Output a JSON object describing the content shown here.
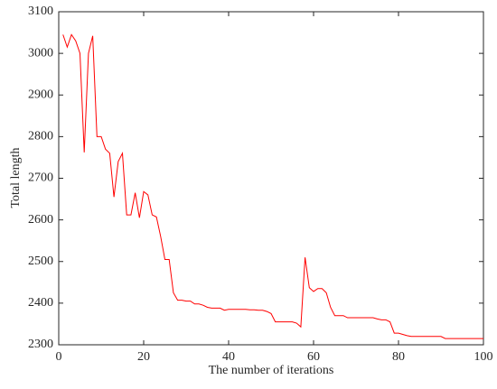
{
  "chart_data": {
    "type": "line",
    "x_label": "The number of iterations",
    "y_label": "Total length",
    "x": [
      1,
      2,
      3,
      4,
      5,
      6,
      7,
      8,
      9,
      10,
      11,
      12,
      13,
      14,
      15,
      16,
      17,
      18,
      19,
      20,
      21,
      22,
      23,
      24,
      25,
      26,
      27,
      28,
      29,
      30,
      31,
      32,
      33,
      34,
      35,
      36,
      37,
      38,
      39,
      40,
      41,
      42,
      43,
      44,
      45,
      46,
      47,
      48,
      49,
      50,
      51,
      52,
      53,
      54,
      55,
      56,
      57,
      58,
      59,
      60,
      61,
      62,
      63,
      64,
      65,
      66,
      67,
      68,
      69,
      70,
      71,
      72,
      73,
      74,
      75,
      76,
      77,
      78,
      79,
      80,
      81,
      82,
      83,
      84,
      85,
      86,
      87,
      88,
      89,
      90,
      91,
      92,
      93,
      94,
      95,
      96,
      97,
      98,
      99,
      100
    ],
    "series": [
      {
        "color": "#ff0000",
        "values": [
          3045,
          3015,
          3045,
          3030,
          3000,
          2762,
          3000,
          3042,
          2800,
          2800,
          2770,
          2760,
          2655,
          2740,
          2760,
          2612,
          2612,
          2665,
          2605,
          2668,
          2660,
          2612,
          2607,
          2560,
          2505,
          2505,
          2425,
          2407,
          2407,
          2405,
          2405,
          2398,
          2398,
          2395,
          2390,
          2388,
          2388,
          2388,
          2383,
          2385,
          2385,
          2385,
          2385,
          2385,
          2384,
          2384,
          2383,
          2383,
          2380,
          2375,
          2355,
          2355,
          2355,
          2355,
          2355,
          2352,
          2343,
          2510,
          2437,
          2428,
          2435,
          2435,
          2425,
          2390,
          2370,
          2370,
          2370,
          2365,
          2365,
          2365,
          2365,
          2365,
          2365,
          2365,
          2362,
          2360,
          2360,
          2355,
          2328,
          2328,
          2325,
          2322,
          2320,
          2320,
          2320,
          2320,
          2320,
          2320,
          2320,
          2320,
          2315,
          2315,
          2315,
          2315,
          2315,
          2315,
          2315,
          2315,
          2315,
          2315
        ]
      }
    ],
    "xlim": [
      0,
      100
    ],
    "xticks": [
      0,
      20,
      40,
      60,
      80,
      100
    ],
    "ylim": [
      2300,
      3100
    ],
    "yticks": [
      2300,
      2400,
      2500,
      2600,
      2700,
      2800,
      2900,
      3000,
      3100
    ]
  }
}
